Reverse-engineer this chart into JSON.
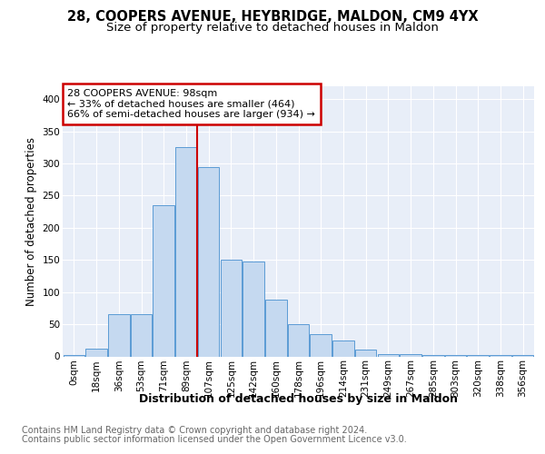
{
  "title1": "28, COOPERS AVENUE, HEYBRIDGE, MALDON, CM9 4YX",
  "title2": "Size of property relative to detached houses in Maldon",
  "xlabel": "Distribution of detached houses by size in Maldon",
  "ylabel": "Number of detached properties",
  "footnote1": "Contains HM Land Registry data © Crown copyright and database right 2024.",
  "footnote2": "Contains public sector information licensed under the Open Government Licence v3.0.",
  "bar_labels": [
    "0sqm",
    "18sqm",
    "36sqm",
    "53sqm",
    "71sqm",
    "89sqm",
    "107sqm",
    "125sqm",
    "142sqm",
    "160sqm",
    "178sqm",
    "196sqm",
    "214sqm",
    "231sqm",
    "249sqm",
    "267sqm",
    "285sqm",
    "303sqm",
    "320sqm",
    "338sqm",
    "356sqm"
  ],
  "bar_values": [
    2,
    12,
    65,
    65,
    235,
    325,
    295,
    150,
    148,
    88,
    50,
    35,
    25,
    10,
    3,
    3,
    2,
    2,
    2,
    2,
    2
  ],
  "bar_color": "#c5d9f0",
  "bar_edge_color": "#5b9bd5",
  "background_color": "#e8eef8",
  "grid_color": "#ffffff",
  "annotation_line1": "28 COOPERS AVENUE: 98sqm",
  "annotation_line2": "← 33% of detached houses are smaller (464)",
  "annotation_line3": "66% of semi-detached houses are larger (934) →",
  "annotation_box_color": "#ffffff",
  "annotation_box_edge_color": "#cc0000",
  "vline_x": 5.5,
  "vline_color": "#cc0000",
  "ylim": [
    0,
    420
  ],
  "yticks": [
    0,
    50,
    100,
    150,
    200,
    250,
    300,
    350,
    400
  ],
  "title_fontsize": 10.5,
  "subtitle_fontsize": 9.5,
  "ylabel_fontsize": 8.5,
  "xlabel_fontsize": 9,
  "tick_fontsize": 7.5,
  "annotation_fontsize": 8,
  "footnote_fontsize": 7
}
